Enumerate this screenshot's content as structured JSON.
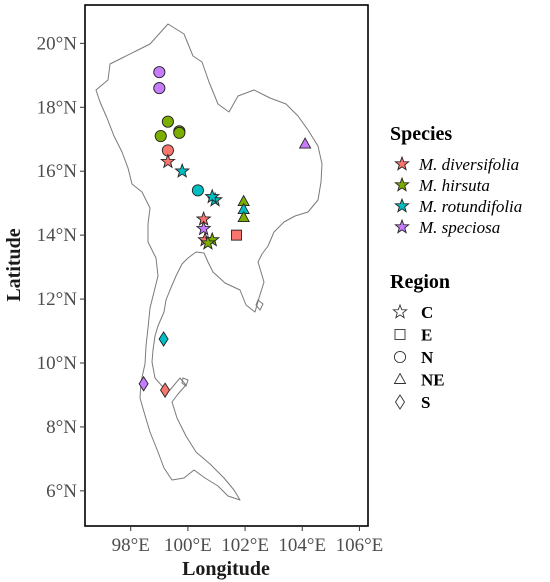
{
  "chart_data": {
    "type": "scatter",
    "xlabel": "Longitude",
    "ylabel": "Latitude",
    "xlim": [
      96.4,
      106.3
    ],
    "ylim": [
      4.9,
      21.2
    ],
    "x_ticks": [
      {
        "value": 98,
        "label": "98°E"
      },
      {
        "value": 100,
        "label": "100°E"
      },
      {
        "value": 102,
        "label": "102°E"
      },
      {
        "value": 104,
        "label": "104°E"
      },
      {
        "value": 106,
        "label": "106°E"
      }
    ],
    "y_ticks": [
      {
        "value": 6,
        "label": "6°N"
      },
      {
        "value": 8,
        "label": "8°N"
      },
      {
        "value": 10,
        "label": "10°N"
      },
      {
        "value": 12,
        "label": "12°N"
      },
      {
        "value": 14,
        "label": "14°N"
      },
      {
        "value": 16,
        "label": "16°N"
      },
      {
        "value": 18,
        "label": "18°N"
      },
      {
        "value": 20,
        "label": "20°N"
      }
    ],
    "grid": false,
    "legend_placement": "right",
    "species_legend": {
      "title": "Species",
      "items": [
        {
          "key": "div",
          "label": "M. diversifolia",
          "color": "#F8766D"
        },
        {
          "key": "hir",
          "label": "M. hirsuta",
          "color": "#7CAE00"
        },
        {
          "key": "rot",
          "label": "M. rotundifolia",
          "color": "#00BFC4"
        },
        {
          "key": "spe",
          "label": "M. speciosa",
          "color": "#C77CFF"
        }
      ]
    },
    "region_legend": {
      "title": "Region",
      "items": [
        {
          "key": "C",
          "label": "C",
          "shape": "star"
        },
        {
          "key": "E",
          "label": "E",
          "shape": "square"
        },
        {
          "key": "N",
          "label": "N",
          "shape": "circle"
        },
        {
          "key": "NE",
          "label": "NE",
          "shape": "triangle"
        },
        {
          "key": "S",
          "label": "S",
          "shape": "diamond"
        }
      ]
    },
    "points": [
      {
        "species": "spe",
        "region": "N",
        "lon": 99.0,
        "lat": 19.1
      },
      {
        "species": "spe",
        "region": "N",
        "lon": 99.0,
        "lat": 18.6
      },
      {
        "species": "hir",
        "region": "N",
        "lon": 99.3,
        "lat": 17.55
      },
      {
        "species": "hir",
        "region": "N",
        "lon": 99.7,
        "lat": 17.25
      },
      {
        "species": "hir",
        "region": "N",
        "lon": 99.7,
        "lat": 17.2
      },
      {
        "species": "hir",
        "region": "N",
        "lon": 99.05,
        "lat": 17.1
      },
      {
        "species": "div",
        "region": "N",
        "lon": 99.3,
        "lat": 16.65
      },
      {
        "species": "div",
        "region": "C",
        "lon": 99.3,
        "lat": 16.3
      },
      {
        "species": "rot",
        "region": "C",
        "lon": 99.8,
        "lat": 16.0
      },
      {
        "species": "rot",
        "region": "N",
        "lon": 100.35,
        "lat": 15.4
      },
      {
        "species": "rot",
        "region": "C",
        "lon": 100.95,
        "lat": 15.1
      },
      {
        "species": "rot",
        "region": "C",
        "lon": 100.85,
        "lat": 15.2
      },
      {
        "species": "hir",
        "region": "NE",
        "lon": 101.95,
        "lat": 15.05
      },
      {
        "species": "rot",
        "region": "NE",
        "lon": 101.95,
        "lat": 14.8
      },
      {
        "species": "hir",
        "region": "NE",
        "lon": 101.95,
        "lat": 14.55
      },
      {
        "species": "div",
        "region": "C",
        "lon": 100.55,
        "lat": 14.5
      },
      {
        "species": "spe",
        "region": "C",
        "lon": 100.55,
        "lat": 14.2
      },
      {
        "species": "div",
        "region": "E",
        "lon": 101.7,
        "lat": 14.0
      },
      {
        "species": "div",
        "region": "C",
        "lon": 100.6,
        "lat": 13.85
      },
      {
        "species": "hir",
        "region": "C",
        "lon": 100.85,
        "lat": 13.85
      },
      {
        "species": "hir",
        "region": "C",
        "lon": 100.7,
        "lat": 13.75
      },
      {
        "species": "spe",
        "region": "NE",
        "lon": 104.1,
        "lat": 16.85
      },
      {
        "species": "rot",
        "region": "S",
        "lon": 99.15,
        "lat": 10.75
      },
      {
        "species": "spe",
        "region": "S",
        "lon": 98.45,
        "lat": 9.35
      },
      {
        "species": "div",
        "region": "S",
        "lon": 99.2,
        "lat": 9.15
      }
    ]
  }
}
